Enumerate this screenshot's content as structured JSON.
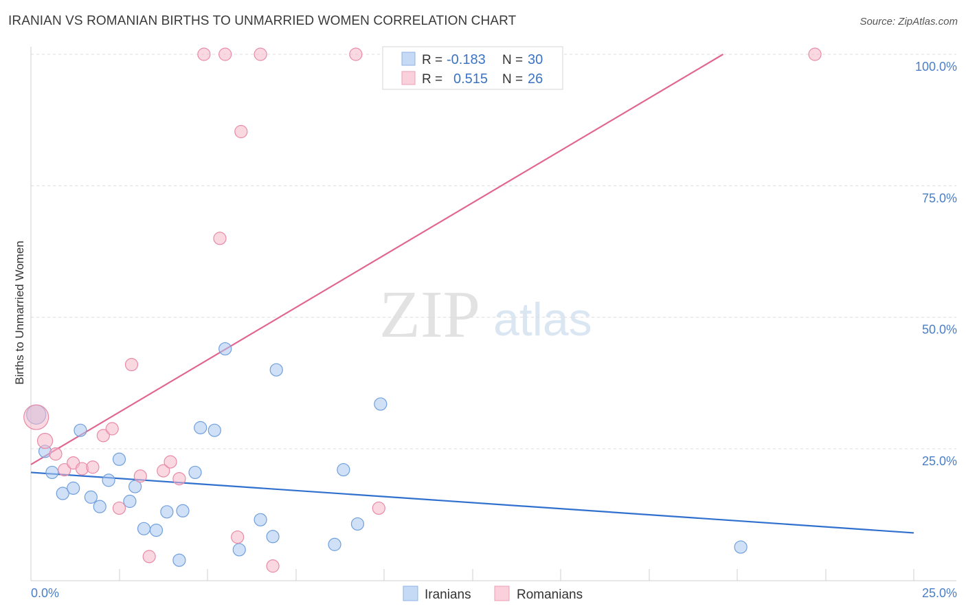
{
  "title": "IRANIAN VS ROMANIAN BIRTHS TO UNMARRIED WOMEN CORRELATION CHART",
  "source": "Source: ZipAtlas.com",
  "watermark": {
    "part1": "ZIP",
    "part2": "atlas"
  },
  "legend": {
    "rows": [
      {
        "r_label": "R = ",
        "r_value": "-0.183",
        "n_label": "N = ",
        "n_value": "30",
        "color": "#a9c8f0"
      },
      {
        "r_label": "R = ",
        "r_value": "0.515",
        "n_label": "N = ",
        "n_value": "26",
        "color": "#f5b8cb"
      }
    ]
  },
  "bottom_legend": [
    "Iranians",
    "Romanians"
  ],
  "chart_data": {
    "type": "scatter",
    "title": "IRANIAN VS ROMANIAN BIRTHS TO UNMARRIED WOMEN CORRELATION CHART",
    "xlabel": "",
    "ylabel": "Births to Unmarried Women",
    "xlim": [
      0,
      25
    ],
    "ylim": [
      0,
      100
    ],
    "x_tick_labels": [
      "0.0%",
      "25.0%"
    ],
    "y_tick_labels": [
      "100.0%",
      "75.0%",
      "50.0%",
      "25.0%"
    ],
    "y_ticks": [
      100,
      75,
      50,
      25
    ],
    "grid": true,
    "legend_position": "top-center",
    "series": [
      {
        "name": "Iranians",
        "color": "#a9c8f0",
        "stroke": "#6f9fdc",
        "line_color": "#2f6fce",
        "trend": [
          [
            0,
            20.5
          ],
          [
            25,
            9
          ]
        ],
        "points": [
          [
            0.15,
            31.5,
            14
          ],
          [
            0.4,
            24.5,
            9
          ],
          [
            0.6,
            20.5,
            9
          ],
          [
            0.9,
            16.5,
            9
          ],
          [
            1.2,
            17.5,
            9
          ],
          [
            1.4,
            28.5,
            9
          ],
          [
            1.7,
            15.8,
            9
          ],
          [
            1.95,
            14,
            9
          ],
          [
            2.2,
            19,
            9
          ],
          [
            2.5,
            23,
            9
          ],
          [
            2.8,
            15,
            9
          ],
          [
            2.95,
            17.8,
            9
          ],
          [
            3.2,
            9.8,
            9
          ],
          [
            3.55,
            9.5,
            9
          ],
          [
            3.85,
            13,
            9
          ],
          [
            4.2,
            3.8,
            9
          ],
          [
            4.3,
            13.2,
            9
          ],
          [
            4.65,
            20.5,
            9
          ],
          [
            4.8,
            29,
            9
          ],
          [
            5.2,
            28.5,
            9
          ],
          [
            5.5,
            44,
            9
          ],
          [
            5.9,
            5.8,
            9
          ],
          [
            6.5,
            11.5,
            9
          ],
          [
            6.85,
            8.3,
            9
          ],
          [
            6.95,
            40,
            9
          ],
          [
            8.6,
            6.8,
            9
          ],
          [
            8.85,
            21,
            9
          ],
          [
            9.25,
            10.7,
            9
          ],
          [
            9.9,
            33.5,
            9
          ],
          [
            20.1,
            6.3,
            9
          ]
        ]
      },
      {
        "name": "Romanians",
        "color": "#f5b8cb",
        "stroke": "#e88aa6",
        "line_color": "#e06590",
        "trend": [
          [
            0,
            22
          ],
          [
            19.6,
            100
          ]
        ],
        "points": [
          [
            0.15,
            31,
            18
          ],
          [
            0.4,
            26.5,
            11
          ],
          [
            0.7,
            24,
            9
          ],
          [
            0.95,
            21,
            9
          ],
          [
            1.2,
            22.3,
            9
          ],
          [
            1.45,
            21.2,
            9
          ],
          [
            1.75,
            21.5,
            9
          ],
          [
            2.05,
            27.5,
            9
          ],
          [
            2.3,
            28.8,
            9
          ],
          [
            2.5,
            13.7,
            9
          ],
          [
            2.85,
            41,
            9
          ],
          [
            3.1,
            19.8,
            9
          ],
          [
            3.35,
            4.5,
            9
          ],
          [
            3.75,
            20.8,
            9
          ],
          [
            3.95,
            22.5,
            9
          ],
          [
            4.2,
            19.3,
            9
          ],
          [
            4.9,
            100,
            9
          ],
          [
            5.35,
            65,
            9
          ],
          [
            5.5,
            100,
            9
          ],
          [
            5.85,
            8.2,
            9
          ],
          [
            5.95,
            85.3,
            9
          ],
          [
            6.5,
            100,
            9
          ],
          [
            6.85,
            2.7,
            9
          ],
          [
            9.2,
            100,
            9
          ],
          [
            9.85,
            13.7,
            9
          ],
          [
            22.2,
            100,
            9
          ]
        ]
      }
    ]
  }
}
